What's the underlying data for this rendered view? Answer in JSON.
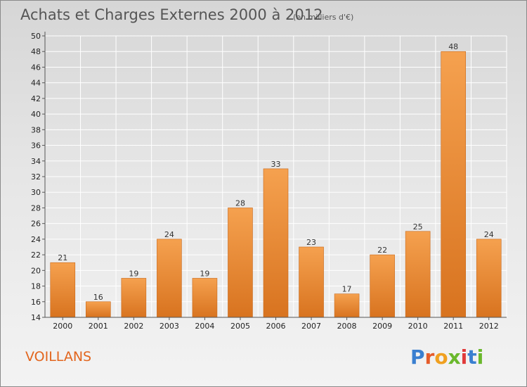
{
  "chart_data": {
    "type": "bar",
    "title": "Achats et Charges Externes 2000 à 2012",
    "subtitle": "(en milliers d'€)",
    "categories": [
      "2000",
      "2001",
      "2002",
      "2003",
      "2004",
      "2005",
      "2006",
      "2007",
      "2008",
      "2009",
      "2010",
      "2011",
      "2012"
    ],
    "values": [
      21,
      16,
      19,
      24,
      19,
      28,
      33,
      23,
      17,
      22,
      25,
      48,
      24
    ],
    "ylim": [
      14,
      50
    ],
    "ytick_step": 2,
    "xlabel": "",
    "ylabel": "",
    "grid": true,
    "bar_color": "#f0923a",
    "bar_color_dark": "#d6721e"
  },
  "commune": "VOILLANS",
  "logo": {
    "text": "Proxiti",
    "letter_colors": [
      "#3a7fd0",
      "#e55c2a",
      "#f0a020",
      "#6ab82c",
      "#e03a3a",
      "#3a7fd0",
      "#6ab82c"
    ]
  }
}
